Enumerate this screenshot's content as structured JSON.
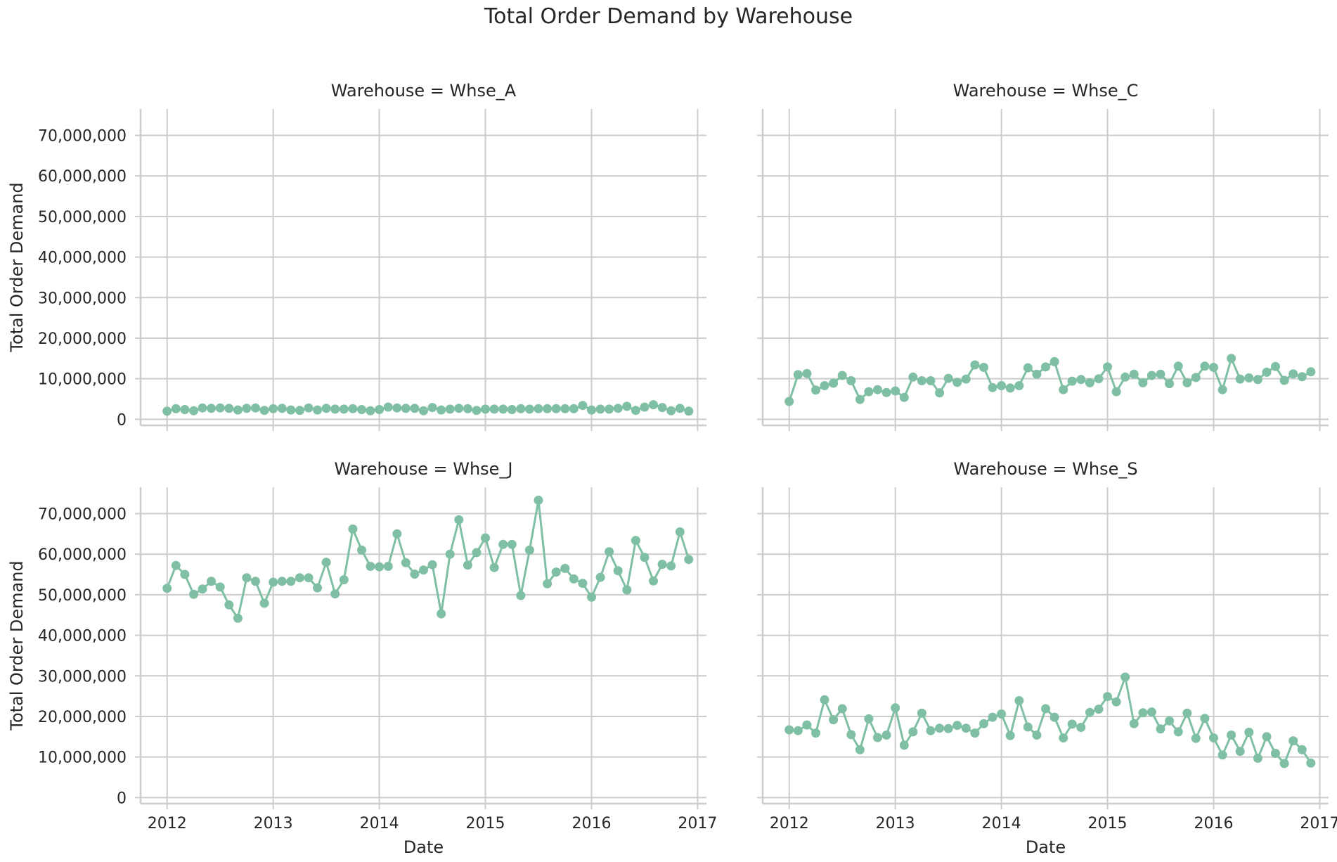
{
  "chart_data": {
    "type": "line",
    "title": "Total Order Demand by Warehouse",
    "xlabel": "Date",
    "ylabel": "Total Order Demand",
    "x_ticks": [
      "2012",
      "2013",
      "2014",
      "2015",
      "2016",
      "2017"
    ],
    "y_ticks": [
      "0",
      "10,000,000",
      "20,000,000",
      "30,000,000",
      "40,000,000",
      "50,000,000",
      "60,000,000",
      "70,000,000"
    ],
    "xlim": [
      "2011-10",
      "2017-02"
    ],
    "ylim": [
      -1500000,
      76500000
    ],
    "grid": true,
    "color": "#7fbfa3",
    "x_start": "2012-01",
    "x_end": "2016-12",
    "x_step": "monthly",
    "facets": [
      {
        "title": "Warehouse = Whse_A",
        "values": [
          2000000,
          2600000,
          2400000,
          2100000,
          2800000,
          2700000,
          2800000,
          2700000,
          2300000,
          2700000,
          2800000,
          2200000,
          2600000,
          2700000,
          2300000,
          2200000,
          2800000,
          2300000,
          2700000,
          2500000,
          2500000,
          2600000,
          2400000,
          2100000,
          2400000,
          3000000,
          2800000,
          2700000,
          2700000,
          2100000,
          2900000,
          2300000,
          2500000,
          2700000,
          2600000,
          2200000,
          2500000,
          2500000,
          2500000,
          2400000,
          2600000,
          2500000,
          2600000,
          2600000,
          2600000,
          2600000,
          2600000,
          3400000,
          2300000,
          2500000,
          2500000,
          2700000,
          3200000,
          2200000,
          3000000,
          3600000,
          2900000,
          2100000,
          2700000,
          2000000
        ]
      },
      {
        "title": "Warehouse = Whse_C",
        "values": [
          4400000,
          11000000,
          11300000,
          7200000,
          8300000,
          8900000,
          10800000,
          9500000,
          4900000,
          6800000,
          7300000,
          6600000,
          7000000,
          5400000,
          10400000,
          9500000,
          9500000,
          6500000,
          10100000,
          9100000,
          9900000,
          13400000,
          12800000,
          7800000,
          8300000,
          7700000,
          8300000,
          12700000,
          11100000,
          12900000,
          14200000,
          7300000,
          9400000,
          9800000,
          9000000,
          10000000,
          12900000,
          6800000,
          10400000,
          11100000,
          9000000,
          10800000,
          11100000,
          8800000,
          13100000,
          9000000,
          10300000,
          13100000,
          12800000,
          7300000,
          15000000,
          9900000,
          10200000,
          9800000,
          11600000,
          13000000,
          9600000,
          11200000,
          10500000,
          11700000
        ]
      },
      {
        "title": "Warehouse = Whse_J",
        "values": [
          51600000,
          57200000,
          55000000,
          50100000,
          51400000,
          53300000,
          51900000,
          47500000,
          44200000,
          54200000,
          53300000,
          47900000,
          53100000,
          53300000,
          53300000,
          54200000,
          54200000,
          51700000,
          58000000,
          50200000,
          53700000,
          66200000,
          61000000,
          57000000,
          56900000,
          57000000,
          65000000,
          57900000,
          55100000,
          56100000,
          57400000,
          45300000,
          60000000,
          68500000,
          57300000,
          60400000,
          64000000,
          56700000,
          62400000,
          62400000,
          49800000,
          61000000,
          73300000,
          52700000,
          55600000,
          56500000,
          53900000,
          52800000,
          49400000,
          54300000,
          60600000,
          55900000,
          51200000,
          63400000,
          59200000,
          53400000,
          57500000,
          57100000,
          65500000,
          58700000
        ]
      },
      {
        "title": "Warehouse = Whse_S",
        "values": [
          16700000,
          16500000,
          17900000,
          15900000,
          24100000,
          19200000,
          21900000,
          15500000,
          11800000,
          19400000,
          14800000,
          15400000,
          22100000,
          12900000,
          16200000,
          20800000,
          16500000,
          17100000,
          17000000,
          17800000,
          17100000,
          15900000,
          18200000,
          19800000,
          20600000,
          15300000,
          23900000,
          17400000,
          15400000,
          21900000,
          19800000,
          14700000,
          18100000,
          17300000,
          21000000,
          21800000,
          24900000,
          23600000,
          29700000,
          18200000,
          20900000,
          21100000,
          16900000,
          18900000,
          16200000,
          20800000,
          14600000,
          19500000,
          14700000,
          10500000,
          15400000,
          11400000,
          16100000,
          9700000,
          15000000,
          10900000,
          8400000,
          14000000,
          11800000,
          8500000
        ]
      }
    ]
  }
}
